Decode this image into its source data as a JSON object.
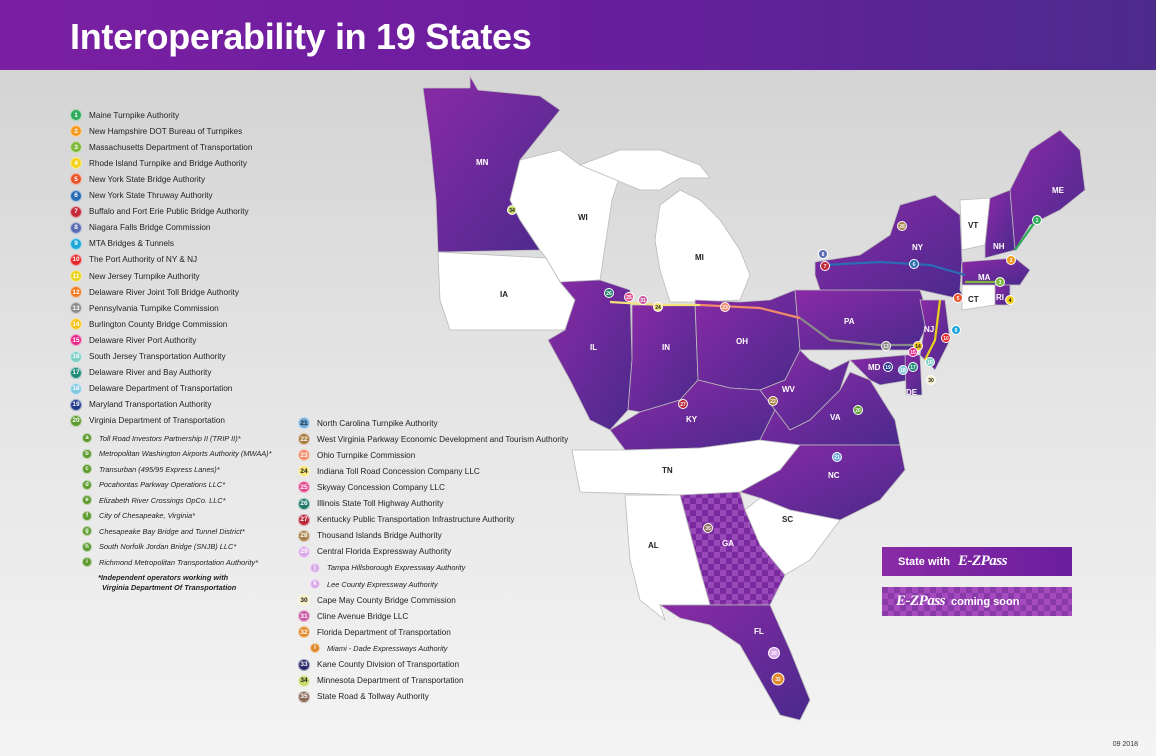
{
  "title": "Interoperability in 19 States",
  "legend_left": [
    {
      "num": "1",
      "label": "Maine Turnpike Authority",
      "color": "#2eab5a"
    },
    {
      "num": "2",
      "label": "New Hampshire DOT Bureau of Turnpikes",
      "color": "#f29a1f"
    },
    {
      "num": "3",
      "label": "Massachusetts Department of Transportation",
      "color": "#7db83a"
    },
    {
      "num": "4",
      "label": "Rhode Island Turnpike and Bridge Authority",
      "color": "#f2d21c"
    },
    {
      "num": "5",
      "label": "New York State Bridge Authority",
      "color": "#e8542a"
    },
    {
      "num": "6",
      "label": "New York State Thruway Authority",
      "color": "#2a6db5"
    },
    {
      "num": "7",
      "label": "Buffalo and Fort Erie Public Bridge Authority",
      "color": "#c12a3a"
    },
    {
      "num": "8",
      "label": "Niagara Falls Bridge Commission",
      "color": "#5b6bb0"
    },
    {
      "num": "9",
      "label": "MTA Bridges & Tunnels",
      "color": "#1fa6d9"
    },
    {
      "num": "10",
      "label": "The Port Authority of NY & NJ",
      "color": "#e2262a"
    },
    {
      "num": "11",
      "label": "New Jersey Turnpike Authority",
      "color": "#e8d21a"
    },
    {
      "num": "12",
      "label": "Delaware River Joint Toll Bridge Authority",
      "color": "#ef7a1f"
    },
    {
      "num": "13",
      "label": "Pennsylvania Turnpike Commission",
      "color": "#8a8a8a"
    },
    {
      "num": "14",
      "label": "Burlington County Bridge Commission",
      "color": "#f4c21a"
    },
    {
      "num": "15",
      "label": "Delaware River Port Authority",
      "color": "#e52a8a"
    },
    {
      "num": "16",
      "label": "South Jersey Transportation Authority",
      "color": "#7ecfc6"
    },
    {
      "num": "17",
      "label": "Delaware River and Bay Authority",
      "color": "#1f8c7a"
    },
    {
      "num": "18",
      "label": "Delaware Department of Transportation",
      "color": "#7fc6de"
    },
    {
      "num": "19",
      "label": "Maryland Transportation Authority",
      "color": "#1e3a8a"
    },
    {
      "num": "20",
      "label": "Virginia Department of Transportation",
      "color": "#5d9a2e"
    }
  ],
  "legend_sub": [
    {
      "num": "a",
      "label": "Toll Road Investors Partnership II (TRIP II)*"
    },
    {
      "num": "b",
      "label": "Metropolitan Washington Airports Authority (MWAA)*"
    },
    {
      "num": "c",
      "label": "Transurban (495/95 Express Lanes)*"
    },
    {
      "num": "d",
      "label": "Pocahontas Parkway Operations LLC*"
    },
    {
      "num": "e",
      "label": "Elizabeth River Crossings OpCo. LLC*"
    },
    {
      "num": "f",
      "label": "City of Chesapeake, Virginia*"
    },
    {
      "num": "g",
      "label": "Chesapeake Bay Bridge and Tunnel District*"
    },
    {
      "num": "h",
      "label": "South Norfolk Jordan Bridge (SNJB) LLC*"
    },
    {
      "num": "i",
      "label": "Richmond Metropolitan Transportation Authority*"
    }
  ],
  "sub_color": "#5d9a2e",
  "footnote_line1": "*Independent operators working with",
  "footnote_line2": "Virginia Department Of Transportation",
  "legend_right": [
    {
      "num": "21",
      "label": "North Carolina Turnpike Authority",
      "color": "#6aa7d9",
      "text": "#222",
      "sub": false
    },
    {
      "num": "22",
      "label": "West Virginia Parkway Economic Development and Tourism Authority",
      "color": "#a87b3a",
      "text": "#fff",
      "sub": false
    },
    {
      "num": "23",
      "label": "Ohio Turnpike Commission",
      "color": "#f08a6a",
      "text": "#fff",
      "sub": false
    },
    {
      "num": "24",
      "label": "Indiana Toll Road Concession Company LLC",
      "color": "#f4e27a",
      "text": "#222",
      "sub": false
    },
    {
      "num": "25",
      "label": "Skyway Concession Company LLC",
      "color": "#e04a8e",
      "text": "#fff",
      "sub": false
    },
    {
      "num": "26",
      "label": "Illinois State Toll Highway Authority",
      "color": "#1f7a6a",
      "text": "#fff",
      "sub": false
    },
    {
      "num": "27",
      "label": "Kentucky Public Transportation Infrastructure Authority",
      "color": "#b8283a",
      "text": "#fff",
      "sub": false
    },
    {
      "num": "28",
      "label": "Thousand Islands Bridge Authority",
      "color": "#a8804a",
      "text": "#fff",
      "sub": false
    },
    {
      "num": "29",
      "label": "Central Florida Expressway Authority",
      "color": "#d9a8e8",
      "text": "#fff",
      "sub": false
    },
    {
      "num": "j",
      "label": "Tampa Hillsborough Expressway Authority",
      "color": "#d9a8e8",
      "text": "#fff",
      "sub": true
    },
    {
      "num": "k",
      "label": "Lee County Expressway Authority",
      "color": "#d9a8e8",
      "text": "#fff",
      "sub": true
    },
    {
      "num": "30",
      "label": "Cape May County Bridge Commission",
      "color": "#f6eec6",
      "text": "#222",
      "sub": false
    },
    {
      "num": "31",
      "label": "Cline Avenue Bridge LLC",
      "color": "#c85aa0",
      "text": "#fff",
      "sub": false
    },
    {
      "num": "32",
      "label": "Florida Department of Transportation",
      "color": "#e08a2a",
      "text": "#fff",
      "sub": false
    },
    {
      "num": "l",
      "label": "Miami - Dade Expressways Authority",
      "color": "#e08a2a",
      "text": "#fff",
      "sub": true
    },
    {
      "num": "33",
      "label": "Kane County Division of Transportation",
      "color": "#2a2a6a",
      "text": "#fff",
      "sub": false
    },
    {
      "num": "34",
      "label": "Minnesota Department of Transportation",
      "color": "#c8d86a",
      "text": "#222",
      "sub": false
    },
    {
      "num": "35",
      "label": "State Road & Tollway Authority",
      "color": "#8a6a5a",
      "text": "#fff",
      "sub": false
    }
  ],
  "states": [
    {
      "abbr": "MN",
      "type": "member"
    },
    {
      "abbr": "WI",
      "type": "none"
    },
    {
      "abbr": "MI",
      "type": "none"
    },
    {
      "abbr": "IA",
      "type": "none"
    },
    {
      "abbr": "IL",
      "type": "member"
    },
    {
      "abbr": "IN",
      "type": "member"
    },
    {
      "abbr": "OH",
      "type": "member"
    },
    {
      "abbr": "PA",
      "type": "member"
    },
    {
      "abbr": "NY",
      "type": "member"
    },
    {
      "abbr": "VT",
      "type": "none"
    },
    {
      "abbr": "NH",
      "type": "member"
    },
    {
      "abbr": "ME",
      "type": "member"
    },
    {
      "abbr": "MA",
      "type": "member"
    },
    {
      "abbr": "CT",
      "type": "none"
    },
    {
      "abbr": "RI",
      "type": "member"
    },
    {
      "abbr": "NJ",
      "type": "member"
    },
    {
      "abbr": "DE",
      "type": "member"
    },
    {
      "abbr": "MD",
      "type": "member"
    },
    {
      "abbr": "WV",
      "type": "member"
    },
    {
      "abbr": "VA",
      "type": "member"
    },
    {
      "abbr": "KY",
      "type": "member"
    },
    {
      "abbr": "TN",
      "type": "none"
    },
    {
      "abbr": "NC",
      "type": "member"
    },
    {
      "abbr": "SC",
      "type": "none"
    },
    {
      "abbr": "GA",
      "type": "coming"
    },
    {
      "abbr": "AL",
      "type": "none"
    },
    {
      "abbr": "FL",
      "type": "member"
    }
  ],
  "key": {
    "member_prefix": "State with",
    "member_logo": "E-ZPass",
    "coming_logo": "E-ZPass",
    "coming_suffix": "coming soon"
  },
  "date": "09 2018",
  "colors": {
    "header": "#6a1e9e",
    "member": "#7a2aa0",
    "member_dark": "#4a2a8c",
    "nonmember": "#ffffff"
  }
}
